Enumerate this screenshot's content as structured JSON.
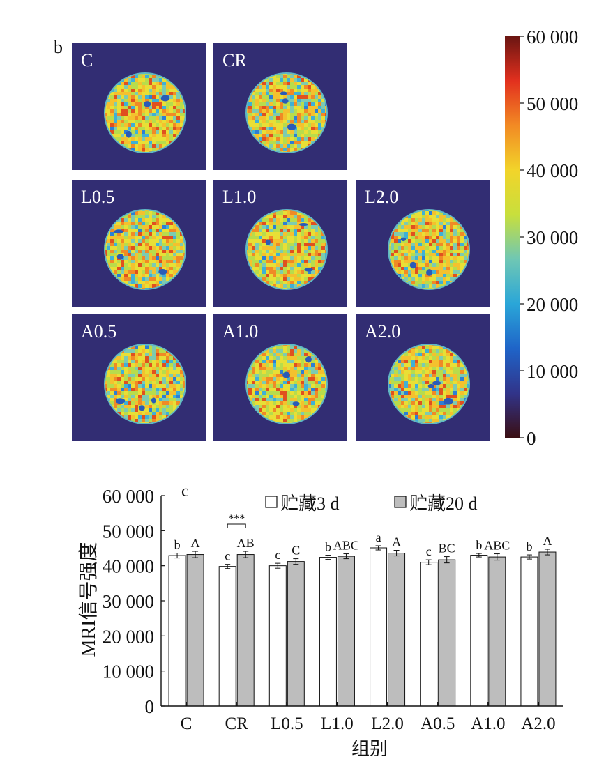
{
  "panel_b": {
    "label": "b",
    "images": [
      {
        "label": "C",
        "seed": 11
      },
      {
        "label": "CR",
        "seed": 23
      },
      {
        "label": "L0.5",
        "seed": 37
      },
      {
        "label": "L1.0",
        "seed": 41
      },
      {
        "label": "L2.0",
        "seed": 53
      },
      {
        "label": "A0.5",
        "seed": 67
      },
      {
        "label": "A1.0",
        "seed": 79
      },
      {
        "label": "A2.0",
        "seed": 83
      }
    ],
    "colorbar": {
      "ticks": [
        {
          "value": 0,
          "label": "0"
        },
        {
          "value": 10000,
          "label": "10 000"
        },
        {
          "value": 20000,
          "label": "20 000"
        },
        {
          "value": 30000,
          "label": "30 000"
        },
        {
          "value": 40000,
          "label": "40 000"
        },
        {
          "value": 50000,
          "label": "50 000"
        },
        {
          "value": 60000,
          "label": "60 000"
        }
      ],
      "min": 0,
      "max": 60000,
      "colors": [
        "#3a0e12",
        "#31348a",
        "#1f64c8",
        "#2aa6d8",
        "#6fc7b4",
        "#c8df3c",
        "#f2d42a",
        "#f28a24",
        "#e2301e",
        "#6a1512"
      ]
    },
    "background_color": "#322d73"
  },
  "chart_data": {
    "type": "bar",
    "panel_label": "c",
    "title": "",
    "xlabel": "组别",
    "ylabel": "MRI信号强度",
    "ylim": [
      0,
      60000
    ],
    "yticks": [
      {
        "value": 0,
        "label": "0"
      },
      {
        "value": 10000,
        "label": "10 000"
      },
      {
        "value": 20000,
        "label": "20 000"
      },
      {
        "value": 30000,
        "label": "30 000"
      },
      {
        "value": 40000,
        "label": "40 000"
      },
      {
        "value": 50000,
        "label": "50 000"
      },
      {
        "value": 60000,
        "label": "60 000"
      }
    ],
    "categories": [
      "C",
      "CR",
      "L0.5",
      "L1.0",
      "L2.0",
      "A0.5",
      "A1.0",
      "A2.0"
    ],
    "series": [
      {
        "name": "贮藏3 d",
        "color": "#ffffff",
        "values": [
          42900,
          39800,
          40000,
          42400,
          45100,
          41000,
          43000,
          42500
        ],
        "errors": [
          700,
          600,
          700,
          600,
          600,
          700,
          500,
          600
        ],
        "letters": [
          "b",
          "c",
          "c",
          "b",
          "a",
          "c",
          "b",
          "b"
        ]
      },
      {
        "name": "贮藏20 d",
        "color": "#bdbdbd",
        "values": [
          43200,
          43200,
          41200,
          42700,
          43600,
          41700,
          42500,
          43900
        ],
        "errors": [
          900,
          900,
          800,
          700,
          800,
          900,
          900,
          800
        ],
        "letters": [
          "A",
          "AB",
          "C",
          "ABC",
          "A",
          "BC",
          "ABC",
          "A"
        ]
      }
    ],
    "annotations": [
      {
        "category": "CR",
        "text": "***"
      }
    ],
    "legend_position": "top"
  }
}
